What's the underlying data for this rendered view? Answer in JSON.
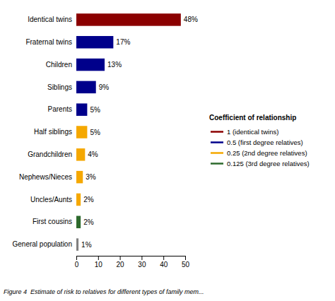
{
  "chart_data": {
    "type": "bar",
    "orientation": "horizontal",
    "categories": [
      "General population",
      "First cousins",
      "Uncles/Aunts",
      "Nephews/Nieces",
      "Grandchildren",
      "Half siblings",
      "Parents",
      "Siblings",
      "Children",
      "Fraternal twins",
      "Identical twins"
    ],
    "values": [
      1,
      2,
      2,
      3,
      4,
      5,
      5,
      9,
      13,
      17,
      48
    ],
    "value_labels": [
      "1%",
      "2%",
      "2%",
      "3%",
      "4%",
      "5%",
      "5%",
      "9%",
      "13%",
      "17%",
      "48%"
    ],
    "colors": [
      "#808080",
      "#2d6a2d",
      "#f5a800",
      "#f5a800",
      "#f5a800",
      "#f5a800",
      "#00008b",
      "#00008b",
      "#00008b",
      "#00008b",
      "#8b0000"
    ],
    "xlim": [
      0,
      50
    ],
    "xticks": [
      0,
      10,
      20,
      30,
      40,
      50
    ],
    "legend": "right",
    "legend_title": "Coefficient of relationship",
    "legend_entries": [
      {
        "color": "#8b0000",
        "label": "1 (identical twins)"
      },
      {
        "color": "#00008b",
        "label": "0.5 (first degree relatives)"
      },
      {
        "color": "#f5a800",
        "label": "0.25 (2nd degree relatives)"
      },
      {
        "color": "#2d6a2d",
        "label": "0.125 (3rd degree relatives)"
      }
    ],
    "caption": "Figure 4  Estimate of risk to relatives for different types of family mem..."
  }
}
